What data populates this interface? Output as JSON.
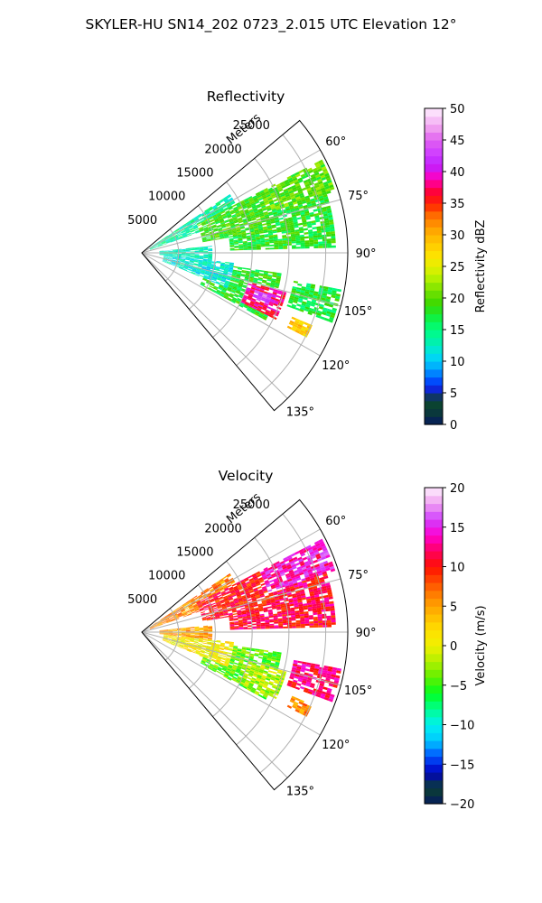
{
  "suptitle": "SKYLER-HU  SN14_202  0723_2.015 UTC Elevation 12°",
  "chart_data": [
    {
      "type": "heatmap",
      "projection": "polar-sector",
      "title": "Reflectivity",
      "radial_label": "Meters",
      "r_ticks": [
        5000,
        10000,
        15000,
        20000,
        25000
      ],
      "r_max": 28000,
      "theta_range_deg": [
        50,
        140
      ],
      "theta_ticks": [
        "60°",
        "75°",
        "90°",
        "105°",
        "120°",
        "135°"
      ],
      "grid": true,
      "colorbar": {
        "label": "Reflectivity dBZ",
        "range": [
          0,
          50
        ],
        "ticks": [
          "0",
          "5",
          "10",
          "15",
          "20",
          "25",
          "30",
          "35",
          "40",
          "45",
          "50"
        ]
      },
      "colormap_stops": [
        {
          "v": 0,
          "c": "#061a5e"
        },
        {
          "v": 2,
          "c": "#0a3a3a"
        },
        {
          "v": 4,
          "c": "#0b4a2a"
        },
        {
          "v": 5,
          "c": "#1515c8"
        },
        {
          "v": 7,
          "c": "#0050ff"
        },
        {
          "v": 9,
          "c": "#00aaff"
        },
        {
          "v": 11,
          "c": "#00e0f0"
        },
        {
          "v": 13,
          "c": "#00f0b0"
        },
        {
          "v": 15,
          "c": "#00ff80"
        },
        {
          "v": 17,
          "c": "#10f040"
        },
        {
          "v": 19,
          "c": "#38d800"
        },
        {
          "v": 21,
          "c": "#70e000"
        },
        {
          "v": 23,
          "c": "#b0f000"
        },
        {
          "v": 25,
          "c": "#e6f000"
        },
        {
          "v": 27,
          "c": "#ffe000"
        },
        {
          "v": 29,
          "c": "#ffc400"
        },
        {
          "v": 31,
          "c": "#ffa000"
        },
        {
          "v": 33,
          "c": "#ff7000"
        },
        {
          "v": 35,
          "c": "#ff2000"
        },
        {
          "v": 37,
          "c": "#ff0040"
        },
        {
          "v": 39,
          "c": "#ff00c0"
        },
        {
          "v": 41,
          "c": "#c020ff"
        },
        {
          "v": 43,
          "c": "#d040ff"
        },
        {
          "v": 45,
          "c": "#e060f0"
        },
        {
          "v": 47,
          "c": "#f0a0f0"
        },
        {
          "v": 50,
          "c": "#fff0ff"
        }
      ],
      "echo_regions": [
        {
          "theta": [
            56,
            70
          ],
          "r": [
            1000,
            14000
          ],
          "value": 14
        },
        {
          "theta": [
            62,
            80
          ],
          "r": [
            8000,
            18000
          ],
          "value": 19
        },
        {
          "theta": [
            62,
            72
          ],
          "r": [
            18000,
            27000
          ],
          "value": 20
        },
        {
          "theta": [
            72,
            88
          ],
          "r": [
            12000,
            26000
          ],
          "value": 18
        },
        {
          "theta": [
            84,
            96
          ],
          "r": [
            2000,
            9000
          ],
          "value": 13
        },
        {
          "theta": [
            96,
            112
          ],
          "r": [
            3000,
            12000
          ],
          "value": 12
        },
        {
          "theta": [
            98,
            118
          ],
          "r": [
            9000,
            19000
          ],
          "value": 18
        },
        {
          "theta": [
            105,
            116
          ],
          "r": [
            15000,
            20000
          ],
          "value": 38
        },
        {
          "theta": [
            108,
            112
          ],
          "r": [
            16000,
            18000
          ],
          "value": 44
        },
        {
          "theta": [
            100,
            110
          ],
          "r": [
            21000,
            27000
          ],
          "value": 17
        },
        {
          "theta": [
            113,
            117
          ],
          "r": [
            22000,
            25000
          ],
          "value": 28
        }
      ]
    },
    {
      "type": "heatmap",
      "projection": "polar-sector",
      "title": "Velocity",
      "radial_label": "Meters",
      "r_ticks": [
        5000,
        10000,
        15000,
        20000,
        25000
      ],
      "r_max": 28000,
      "theta_range_deg": [
        50,
        140
      ],
      "theta_ticks": [
        "60°",
        "75°",
        "90°",
        "105°",
        "120°",
        "135°"
      ],
      "grid": true,
      "colorbar": {
        "label": "Velocity (m/s)",
        "range": [
          -20,
          20
        ],
        "ticks": [
          "−20",
          "−15",
          "−10",
          "−5",
          "0",
          "5",
          "10",
          "15",
          "20"
        ]
      },
      "colormap_stops": [
        {
          "v": -20,
          "c": "#061a5e"
        },
        {
          "v": -18,
          "c": "#0b4030"
        },
        {
          "v": -16,
          "c": "#0000c0"
        },
        {
          "v": -14,
          "c": "#0050ff"
        },
        {
          "v": -12,
          "c": "#00c8ff"
        },
        {
          "v": -10,
          "c": "#00f0f0"
        },
        {
          "v": -8,
          "c": "#00ff90"
        },
        {
          "v": -6,
          "c": "#00ff20"
        },
        {
          "v": -4,
          "c": "#60f000"
        },
        {
          "v": -2,
          "c": "#b0f000"
        },
        {
          "v": 0,
          "c": "#f0f000"
        },
        {
          "v": 2,
          "c": "#ffe000"
        },
        {
          "v": 4,
          "c": "#ffb800"
        },
        {
          "v": 6,
          "c": "#ff8c00"
        },
        {
          "v": 8,
          "c": "#ff5000"
        },
        {
          "v": 10,
          "c": "#ff1000"
        },
        {
          "v": 12,
          "c": "#ff0060"
        },
        {
          "v": 14,
          "c": "#ff00d0"
        },
        {
          "v": 16,
          "c": "#d040ff"
        },
        {
          "v": 18,
          "c": "#f0a0f0"
        },
        {
          "v": 20,
          "c": "#fff0ff"
        }
      ],
      "echo_regions": [
        {
          "theta": [
            56,
            70
          ],
          "r": [
            1000,
            14000
          ],
          "value": 6
        },
        {
          "theta": [
            62,
            80
          ],
          "r": [
            8000,
            18000
          ],
          "value": 10
        },
        {
          "theta": [
            62,
            72
          ],
          "r": [
            18000,
            27000
          ],
          "value": 14
        },
        {
          "theta": [
            72,
            88
          ],
          "r": [
            12000,
            26000
          ],
          "value": 11
        },
        {
          "theta": [
            84,
            96
          ],
          "r": [
            2000,
            9000
          ],
          "value": 5
        },
        {
          "theta": [
            96,
            112
          ],
          "r": [
            3000,
            12000
          ],
          "value": 1
        },
        {
          "theta": [
            98,
            118
          ],
          "r": [
            9000,
            19000
          ],
          "value": -4
        },
        {
          "theta": [
            105,
            116
          ],
          "r": [
            15000,
            20000
          ],
          "value": -2
        },
        {
          "theta": [
            100,
            110
          ],
          "r": [
            21000,
            27000
          ],
          "value": 12
        },
        {
          "theta": [
            113,
            117
          ],
          "r": [
            22000,
            25000
          ],
          "value": 6
        }
      ]
    }
  ]
}
